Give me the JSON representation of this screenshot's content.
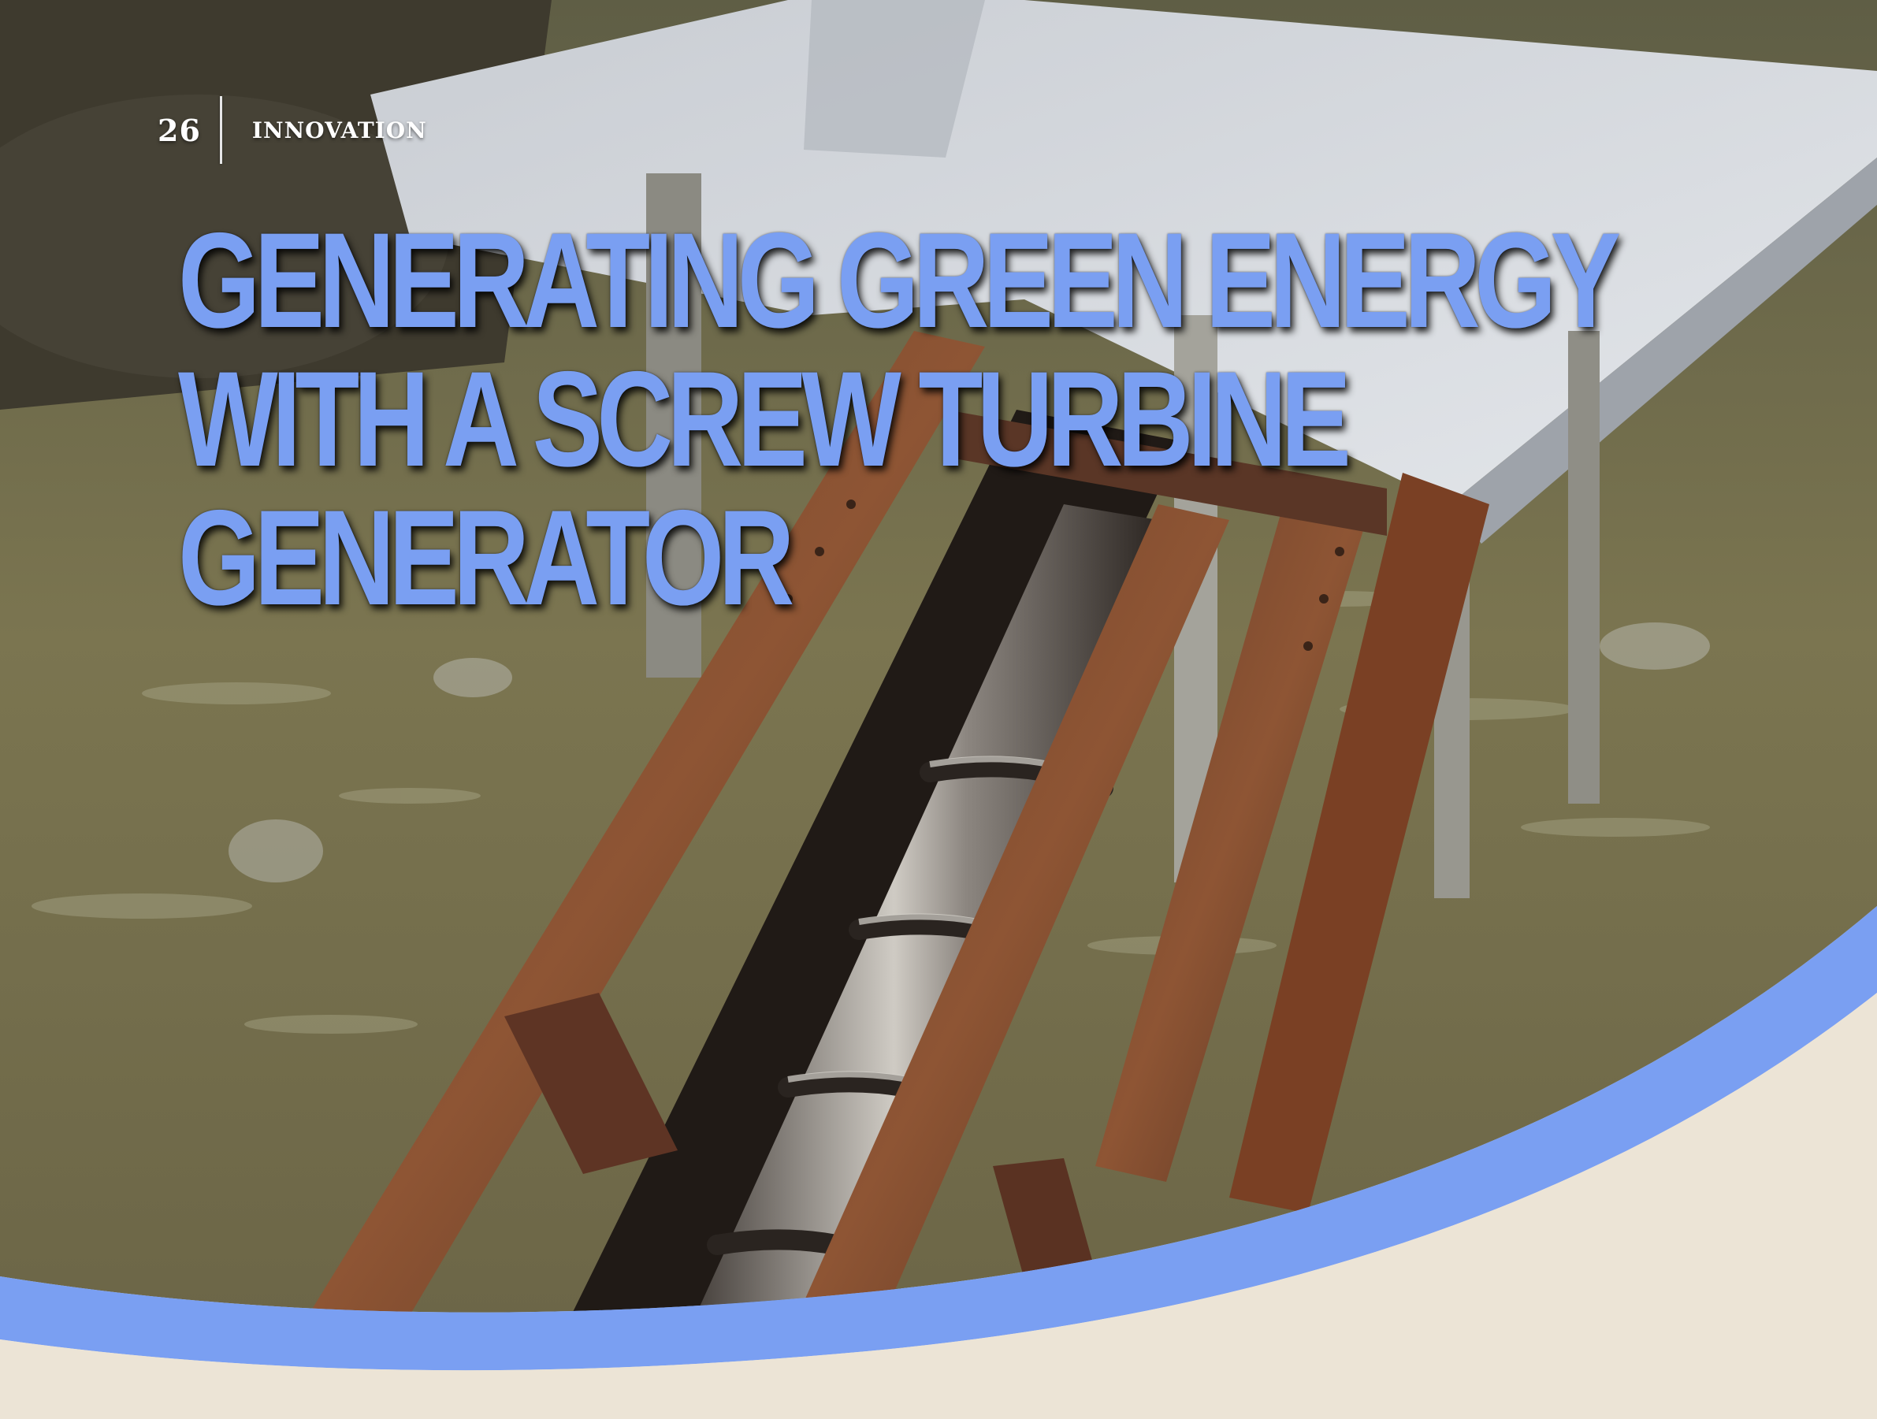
{
  "header": {
    "page_number": "26",
    "section": "INNOVATION"
  },
  "title": {
    "lines": [
      "GENERATING GREEN ENERGY",
      "WITH A SCREW TURBINE",
      "GENERATOR"
    ]
  },
  "colors": {
    "title": "#7a9ff2",
    "curve_band": "#7a9ff2",
    "page_background": "#ece4d6",
    "water": "#6f6a48"
  },
  "photo": {
    "icon": "screw-turbine-photo"
  }
}
